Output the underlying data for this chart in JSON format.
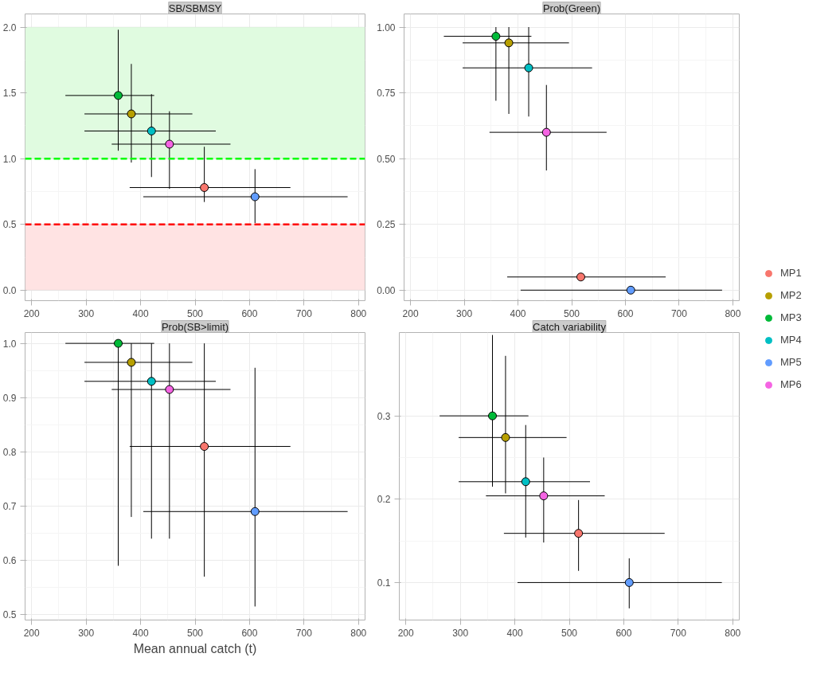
{
  "chart_data": [
    {
      "type": "scatter",
      "title": "SB/SBMSY",
      "marker": "circle",
      "grid": true,
      "legend": "right",
      "xlim": [
        188,
        812
      ],
      "xticks": [
        200,
        300,
        400,
        500,
        600,
        700,
        800
      ],
      "ylim": [
        -0.08,
        2.1
      ],
      "yticks": [
        {
          "value": 0,
          "label": "0.0"
        },
        {
          "value": 0.5,
          "label": "0.5"
        },
        {
          "value": 1,
          "label": "1.0"
        },
        {
          "value": 1.5,
          "label": "1.5"
        },
        {
          "value": 2,
          "label": "2.0"
        }
      ],
      "bands": [
        {
          "axis": "y",
          "from": 1.0,
          "to": 2.0,
          "color": "#e0fbe0"
        },
        {
          "axis": "y",
          "from": 0,
          "to": 0.5,
          "color": "#ffe3e3"
        }
      ],
      "ref_lines": [
        {
          "axis": "y",
          "value": 1.0,
          "color": "#00ff00",
          "line_style": "dashed"
        },
        {
          "axis": "y",
          "value": 0.5,
          "color": "#ff0000",
          "line_style": "dashed"
        }
      ],
      "series": [
        {
          "name": "MP1",
          "color": "#f8766d",
          "x": [
            517
          ],
          "values": [
            0.78
          ],
          "errors": [
            [
              0.67,
              1.09
            ]
          ],
          "xerrors": [
            [
              380,
              675
            ]
          ]
        },
        {
          "name": "MP2",
          "color": "#b79f00",
          "x": [
            383
          ],
          "values": [
            1.34
          ],
          "errors": [
            [
              0.97,
              1.72
            ]
          ],
          "xerrors": [
            [
              297,
              495
            ]
          ]
        },
        {
          "name": "MP3",
          "color": "#00ba38",
          "x": [
            359
          ],
          "values": [
            1.48
          ],
          "errors": [
            [
              1.06,
              1.98
            ]
          ],
          "xerrors": [
            [
              262,
              425
            ]
          ]
        },
        {
          "name": "MP4",
          "color": "#00bfc4",
          "x": [
            420
          ],
          "values": [
            1.21
          ],
          "errors": [
            [
              0.86,
              1.49
            ]
          ],
          "xerrors": [
            [
              297,
              538
            ]
          ]
        },
        {
          "name": "MP5",
          "color": "#619cff",
          "x": [
            610
          ],
          "values": [
            0.71
          ],
          "errors": [
            [
              0.51,
              0.92
            ]
          ],
          "xerrors": [
            [
              405,
              780
            ]
          ]
        },
        {
          "name": "MP6",
          "color": "#f564e3",
          "x": [
            453
          ],
          "values": [
            1.11
          ],
          "errors": [
            [
              0.77,
              1.36
            ]
          ],
          "xerrors": [
            [
              347,
              565
            ]
          ]
        }
      ]
    },
    {
      "type": "scatter",
      "title": "Prob(Green)",
      "marker": "circle",
      "grid": true,
      "xlim": [
        188,
        812
      ],
      "xticks": [
        200,
        300,
        400,
        500,
        600,
        700,
        800
      ],
      "ylim": [
        -0.04,
        1.05
      ],
      "yticks": [
        {
          "value": 0,
          "label": "0.00"
        },
        {
          "value": 0.25,
          "label": "0.25"
        },
        {
          "value": 0.5,
          "label": "0.50"
        },
        {
          "value": 0.75,
          "label": "0.75"
        },
        {
          "value": 1,
          "label": "1.00"
        }
      ],
      "series": [
        {
          "color": "#f8766d",
          "x": [
            517
          ],
          "values": [
            0.05
          ],
          "errors": [
            null
          ],
          "xerrors": [
            [
              380,
              675
            ]
          ]
        },
        {
          "color": "#b79f00",
          "x": [
            383
          ],
          "values": [
            0.94
          ],
          "errors": [
            [
              0.67,
              1.0
            ]
          ],
          "xerrors": [
            [
              297,
              495
            ]
          ]
        },
        {
          "color": "#00ba38",
          "x": [
            359
          ],
          "values": [
            0.965
          ],
          "errors": [
            [
              0.72,
              1.0
            ]
          ],
          "xerrors": [
            [
              262,
              425
            ]
          ]
        },
        {
          "color": "#00bfc4",
          "x": [
            420
          ],
          "values": [
            0.845
          ],
          "errors": [
            [
              0.66,
              1.0
            ]
          ],
          "xerrors": [
            [
              297,
              538
            ]
          ]
        },
        {
          "color": "#619cff",
          "x": [
            610
          ],
          "values": [
            0.0
          ],
          "errors": [
            null
          ],
          "xerrors": [
            [
              405,
              780
            ]
          ]
        },
        {
          "color": "#f564e3",
          "x": [
            453
          ],
          "values": [
            0.6
          ],
          "errors": [
            [
              0.455,
              0.78
            ]
          ],
          "xerrors": [
            [
              347,
              565
            ]
          ]
        }
      ]
    },
    {
      "type": "scatter",
      "title": "Prob(SB>limit)",
      "xlabel": "Mean annual catch (t)",
      "marker": "circle",
      "grid": true,
      "xlim": [
        188,
        812
      ],
      "xticks": [
        200,
        300,
        400,
        500,
        600,
        700,
        800
      ],
      "ylim": [
        0.49,
        1.02
      ],
      "yticks": [
        {
          "value": 0.5,
          "label": "0.5"
        },
        {
          "value": 0.6,
          "label": "0.6"
        },
        {
          "value": 0.7,
          "label": "0.7"
        },
        {
          "value": 0.8,
          "label": "0.8"
        },
        {
          "value": 0.9,
          "label": "0.9"
        },
        {
          "value": 1,
          "label": "1.0"
        }
      ],
      "series": [
        {
          "color": "#f8766d",
          "x": [
            517
          ],
          "values": [
            0.81
          ],
          "errors": [
            [
              0.57,
              1.0
            ]
          ],
          "xerrors": [
            [
              380,
              675
            ]
          ]
        },
        {
          "color": "#b79f00",
          "x": [
            383
          ],
          "values": [
            0.965
          ],
          "errors": [
            [
              0.68,
              1.0
            ]
          ],
          "xerrors": [
            [
              297,
              495
            ]
          ]
        },
        {
          "color": "#00ba38",
          "x": [
            359
          ],
          "values": [
            1.0
          ],
          "errors": [
            [
              0.59,
              1.0
            ]
          ],
          "xerrors": [
            [
              262,
              425
            ]
          ]
        },
        {
          "color": "#00bfc4",
          "x": [
            420
          ],
          "values": [
            0.93
          ],
          "errors": [
            [
              0.64,
              1.0
            ]
          ],
          "xerrors": [
            [
              297,
              538
            ]
          ]
        },
        {
          "color": "#619cff",
          "x": [
            610
          ],
          "values": [
            0.69
          ],
          "errors": [
            [
              0.515,
              0.955
            ]
          ],
          "xerrors": [
            [
              405,
              780
            ]
          ]
        },
        {
          "color": "#f564e3",
          "x": [
            453
          ],
          "values": [
            0.915
          ],
          "errors": [
            [
              0.64,
              1.0
            ]
          ],
          "xerrors": [
            [
              347,
              565
            ]
          ]
        }
      ]
    },
    {
      "type": "scatter",
      "title": "Catch variability",
      "marker": "circle",
      "grid": true,
      "xlim": [
        188,
        812
      ],
      "xticks": [
        200,
        300,
        400,
        500,
        600,
        700,
        800
      ],
      "ylim": [
        0.055,
        0.4
      ],
      "yticks": [
        0.1,
        0.2,
        0.3
      ],
      "series": [
        {
          "color": "#f8766d",
          "x": [
            517
          ],
          "values": [
            0.159
          ],
          "errors": [
            [
              0.114,
              0.199
            ]
          ],
          "xerrors": [
            [
              380,
              675
            ]
          ]
        },
        {
          "color": "#b79f00",
          "x": [
            383
          ],
          "values": [
            0.274
          ],
          "errors": [
            [
              0.207,
              0.372
            ]
          ],
          "xerrors": [
            [
              297,
              495
            ]
          ]
        },
        {
          "color": "#00ba38",
          "x": [
            359
          ],
          "values": [
            0.3
          ],
          "errors": [
            [
              0.215,
              0.397
            ]
          ],
          "xerrors": [
            [
              262,
              425
            ]
          ]
        },
        {
          "color": "#00bfc4",
          "x": [
            420
          ],
          "values": [
            0.221
          ],
          "errors": [
            [
              0.154,
              0.289
            ]
          ],
          "xerrors": [
            [
              297,
              538
            ]
          ]
        },
        {
          "color": "#619cff",
          "x": [
            610
          ],
          "values": [
            0.1
          ],
          "errors": [
            [
              0.069,
              0.129
            ]
          ],
          "xerrors": [
            [
              405,
              780
            ]
          ]
        },
        {
          "color": "#f564e3",
          "x": [
            453
          ],
          "values": [
            0.204
          ],
          "errors": [
            [
              0.148,
              0.25
            ]
          ],
          "xerrors": [
            [
              347,
              565
            ]
          ]
        }
      ]
    }
  ]
}
